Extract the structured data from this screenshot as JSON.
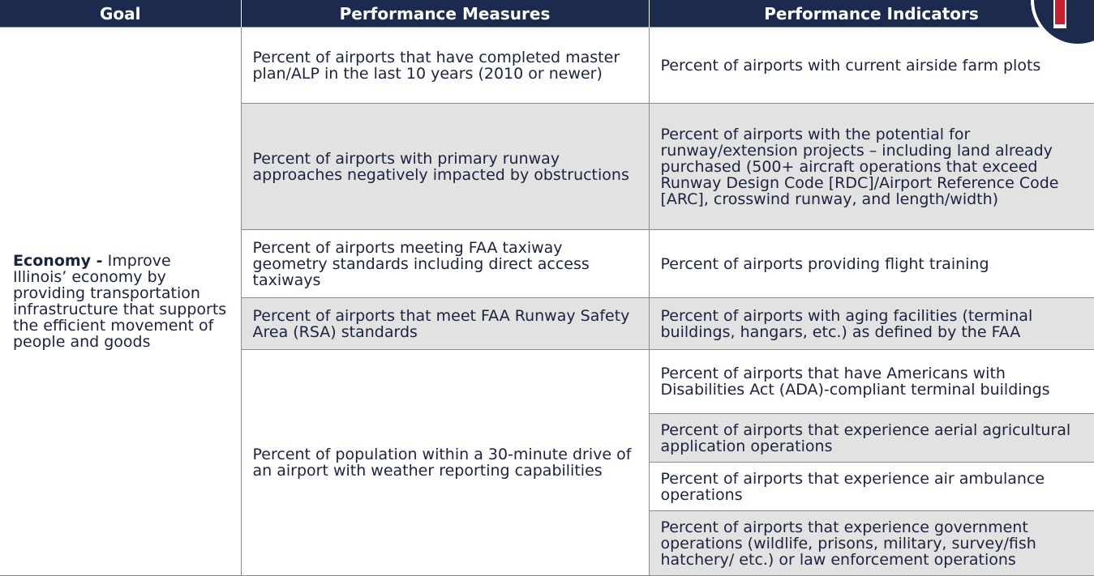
{
  "header": [
    "Goal",
    "Performance Measures",
    "Performance Indicators"
  ],
  "goal": {
    "label": "Economy -",
    "text": "Improve Illinois’ economy by providing transportation infrastructure that supports the efficient movement of people and goods"
  },
  "rows": [
    {
      "measure": "Percent of airports that have completed master plan/ALP in the last 10 years (2010 or newer)",
      "indicators": [
        "Percent of airports with current airside farm plots"
      ]
    },
    {
      "measure": "Percent of airports with primary runway approaches negatively impacted by obstructions",
      "indicators": [
        "Percent of airports with the potential for runway/extension projects – including land already purchased (500+ aircraft operations that exceed Runway Design Code [RDC]/Airport Reference Code [ARC], crosswind runway, and length/width)"
      ]
    },
    {
      "measure": "Percent of airports meeting FAA taxiway geometry standards including direct access taxiways",
      "indicators": [
        "Percent of airports providing flight training"
      ]
    },
    {
      "measure": "Percent of airports that meet FAA Runway Safety Area (RSA) standards",
      "indicators": [
        "Percent of airports with aging facilities (terminal buildings, hangars, etc.) as defined by the FAA"
      ]
    },
    {
      "measure": "Percent of population within a 30-minute drive of an airport with weather reporting capabilities",
      "indicators": [
        "Percent of airports that have Americans with Disabilities Act (ADA)-compliant terminal buildings",
        "Percent of airports that experience aerial agricultural application operations",
        "Percent of airports that experience air ambulance operations",
        "Percent of airports that experience government operations (wildlife, prisons, military, survey/fish hatchery/ etc.) or law enforcement operations"
      ]
    }
  ]
}
